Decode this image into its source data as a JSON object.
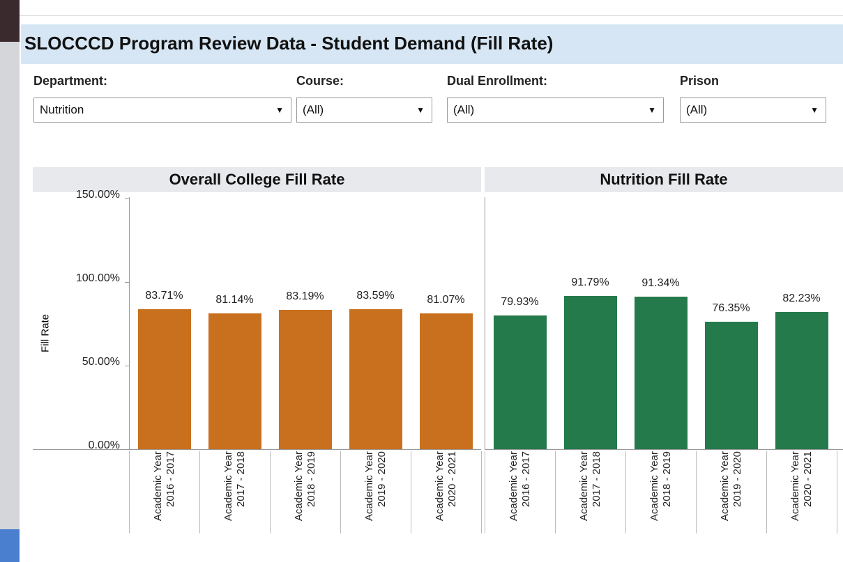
{
  "header": {
    "title": "SLOCCCD Program Review Data - Student Demand (Fill Rate)"
  },
  "filters": [
    {
      "label": "Department:",
      "value": "Nutrition"
    },
    {
      "label": "Course:",
      "value": "(All)"
    },
    {
      "label": "Dual Enrollment:",
      "value": "(All)"
    },
    {
      "label": "Prison",
      "value": "(All)"
    }
  ],
  "chart_data": [
    {
      "type": "bar",
      "title": "Overall College Fill Rate",
      "ylabel": "Fill Rate",
      "color": "#c9701e",
      "categories": [
        "Academic Year 2016 - 2017",
        "Academic Year 2017 - 2018",
        "Academic Year 2018 - 2019",
        "Academic Year 2019 - 2020",
        "Academic Year 2020 - 2021"
      ],
      "values": [
        83.71,
        81.14,
        83.19,
        83.59,
        81.07
      ],
      "value_labels": [
        "83.71%",
        "81.14%",
        "83.19%",
        "83.59%",
        "81.07%"
      ],
      "ylim": [
        0,
        150
      ],
      "yticks": [
        {
          "value": 0,
          "label": "0.00%"
        },
        {
          "value": 50,
          "label": "50.00%"
        },
        {
          "value": 100,
          "label": "100.00%"
        },
        {
          "value": 150,
          "label": "150.00%"
        }
      ]
    },
    {
      "type": "bar",
      "title": "Nutrition Fill Rate",
      "color": "#257a4c",
      "categories": [
        "Academic Year 2016 - 2017",
        "Academic Year 2017 - 2018",
        "Academic Year 2018 - 2019",
        "Academic Year 2019 - 2020",
        "Academic Year 2020 - 2021"
      ],
      "values": [
        79.93,
        91.79,
        91.34,
        76.35,
        82.23
      ],
      "value_labels": [
        "79.93%",
        "91.79%",
        "91.34%",
        "76.35%",
        "82.23%"
      ],
      "ylim": [
        0,
        150
      ]
    }
  ]
}
